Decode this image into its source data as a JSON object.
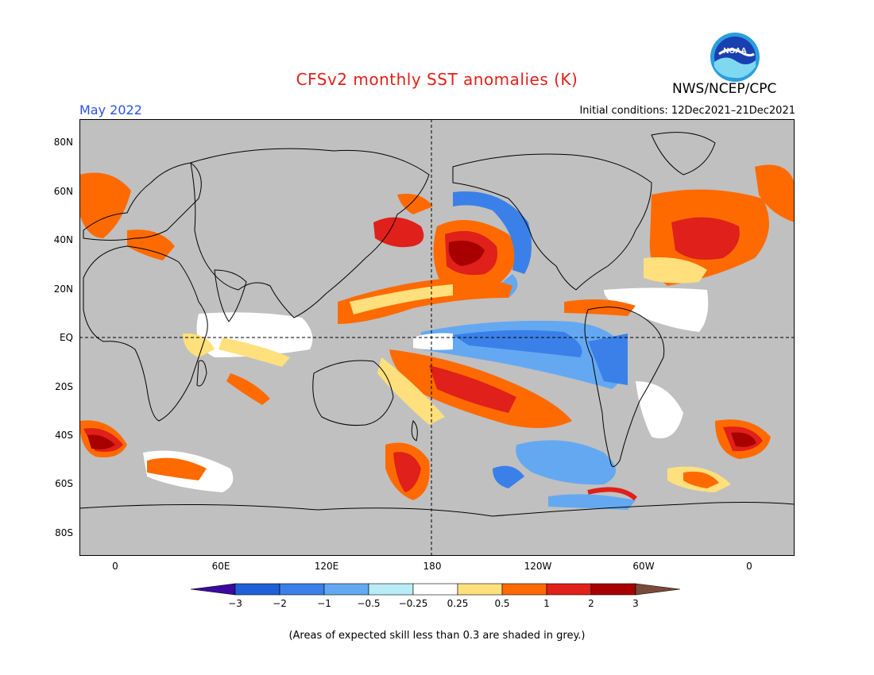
{
  "header": {
    "title": "CFSv2 monthly SST anomalies (K)",
    "agency": "NWS/NCEP/CPC",
    "logo_text": "NOAA",
    "month": "May 2022",
    "initial_conditions": "Initial conditions: 12Dec2021–21Dec2021"
  },
  "map": {
    "lat_labels": [
      "80N",
      "60N",
      "40N",
      "20N",
      "EQ",
      "20S",
      "40S",
      "60S",
      "80S"
    ],
    "lon_labels": [
      "0",
      "60E",
      "120E",
      "180",
      "120W",
      "60W",
      "0"
    ],
    "colors": {
      "land": "#000000",
      "ocean_masked": "#c0c0c0",
      "frame": "#000000"
    }
  },
  "colorbar": {
    "labels": [
      "−3",
      "−2",
      "−1",
      "−0.5",
      "−0.25",
      "0.25",
      "0.5",
      "1",
      "2",
      "3"
    ],
    "colors": [
      "#3a0a9e",
      "#1e60d8",
      "#3a80e8",
      "#64a8f2",
      "#b8ecf6",
      "#ffffff",
      "#ffe07c",
      "#ff6a00",
      "#e0201a",
      "#a80000",
      "#7a4a3a"
    ]
  },
  "footnote": "(Areas of expected skill less than 0.3 are shaded in grey.)"
}
